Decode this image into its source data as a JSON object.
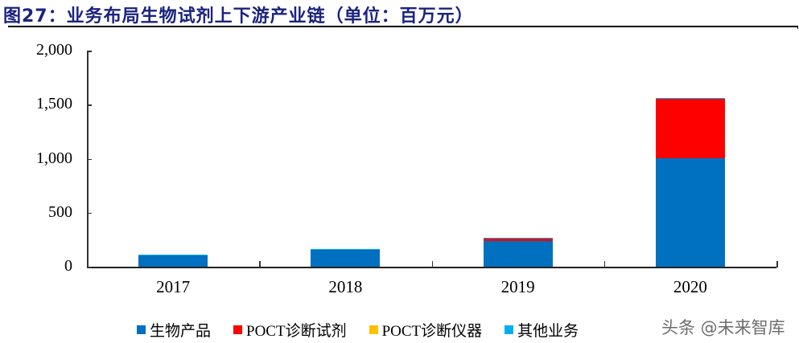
{
  "title": "图27：业务布局生物试剂上下游产业链（单位：百万元）",
  "watermark": "头条 @未来智库",
  "colors": {
    "bio_products": "#0070C0",
    "poct_reagents": "#FF0000",
    "poct_instruments": "#FFC000",
    "other": "#00B0F0"
  },
  "chart_data": {
    "type": "bar",
    "stacked": true,
    "title": "图27：业务布局生物试剂上下游产业链（单位：百万元）",
    "xlabel": "",
    "ylabel": "",
    "categories": [
      "2017",
      "2018",
      "2019",
      "2020"
    ],
    "series": [
      {
        "name": "生物产品",
        "color": "#0070C0",
        "values": [
          105,
          155,
          235,
          1000
        ]
      },
      {
        "name": "POCT诊断试剂",
        "color": "#FF0000",
        "values": [
          0,
          4,
          25,
          555
        ]
      },
      {
        "name": "POCT诊断仪器",
        "color": "#FFC000",
        "values": [
          0,
          0,
          0,
          0
        ]
      },
      {
        "name": "其他业务",
        "color": "#00B0F0",
        "values": [
          7,
          5,
          8,
          5
        ]
      }
    ],
    "ylim": [
      0,
      2000
    ],
    "yticks": [
      "0",
      "500",
      "1,000",
      "1,500",
      "2,000"
    ],
    "grid": false,
    "legend_position": "bottom"
  },
  "legend": [
    {
      "label": "生物产品",
      "color": "#0070C0"
    },
    {
      "label": "POCT诊断试剂",
      "color": "#FF0000"
    },
    {
      "label": "POCT诊断仪器",
      "color": "#FFC000"
    },
    {
      "label": "其他业务",
      "color": "#00B0F0"
    }
  ]
}
